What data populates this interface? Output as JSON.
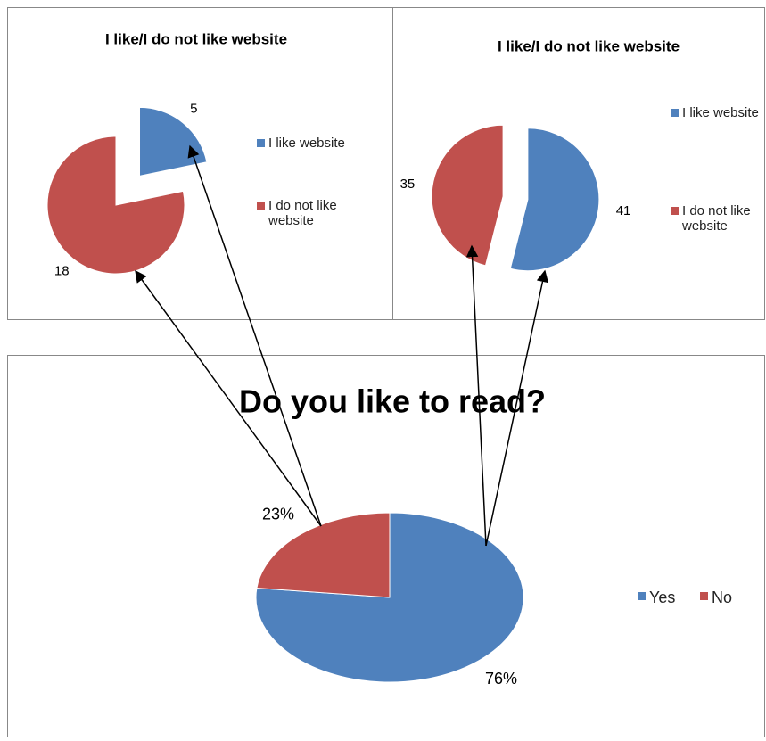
{
  "chart_data": [
    {
      "type": "pie",
      "title": "I like/I do not like website",
      "categories": [
        "I like website",
        "I do not like website"
      ],
      "values": [
        5,
        18
      ],
      "colors": [
        "#4f81bd",
        "#c0504d"
      ]
    },
    {
      "type": "pie",
      "title": "I like/I do not like website",
      "categories": [
        "I like website",
        "I do not like website"
      ],
      "values": [
        41,
        35
      ],
      "colors": [
        "#4f81bd",
        "#c0504d"
      ]
    },
    {
      "type": "pie",
      "title": "Do you like to read?",
      "categories": [
        "Yes",
        "No"
      ],
      "values": [
        76,
        23
      ],
      "value_labels": [
        "76%",
        "23%"
      ],
      "colors": [
        "#4f81bd",
        "#c0504d"
      ]
    }
  ]
}
